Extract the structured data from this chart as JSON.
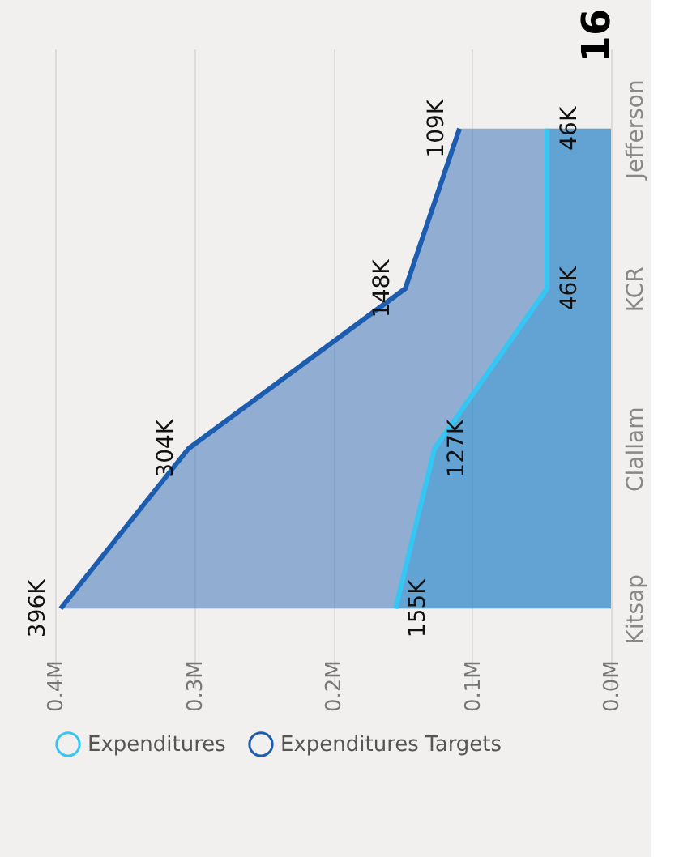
{
  "chart_data": {
    "type": "area",
    "orientation": "horizontal",
    "categories": [
      "Jefferson",
      "KCR",
      "Clallam",
      "Kitsap"
    ],
    "series": [
      {
        "name": "Expenditures",
        "color": "#35c6f4",
        "values": [
          46000,
          46000,
          127000,
          155000
        ],
        "value_labels": [
          "46K",
          "46K",
          "127K",
          "155K"
        ]
      },
      {
        "name": "Expenditures Targets",
        "color": "#1d5db0",
        "values": [
          109000,
          148000,
          304000,
          396000
        ],
        "value_labels": [
          "109K",
          "148K",
          "304K",
          "396K"
        ]
      }
    ],
    "xlim": [
      400000,
      0
    ],
    "xticks": [
      {
        "value": 400000,
        "label": "0.4M"
      },
      {
        "value": 300000,
        "label": "0.3M"
      },
      {
        "value": 200000,
        "label": "0.2M"
      },
      {
        "value": 100000,
        "label": "0.1M"
      },
      {
        "value": 0,
        "label": "0.0M"
      }
    ],
    "grid": "x",
    "legend": "bottom",
    "marker": "none",
    "line_style": "solid",
    "annotations": [
      "16"
    ]
  }
}
